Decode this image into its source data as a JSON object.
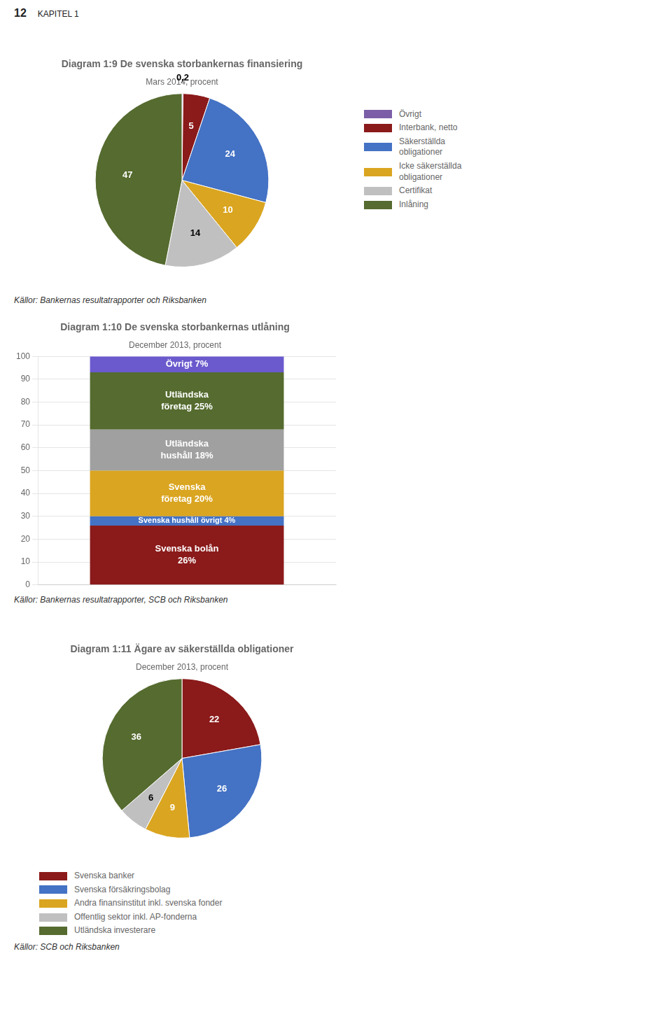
{
  "title": "12",
  "subtitle": "KAPITEL 1",
  "chart_data": [
    {
      "type": "pie",
      "title": "Diagram 1:9 De svenska storbankernas finansiering",
      "subtitle": "Mars 2014, procent",
      "annotations": [
        "Källor: Bankernas resultatrapporter och Riksbanken"
      ],
      "categories": [
        "Övrigt",
        "Interbank, netto",
        "Säkerställda\nobligationer",
        "Icke säkerställda\nobligationer",
        "Certifikat",
        "Inlåning"
      ],
      "values": [
        0.2,
        5,
        24,
        10,
        14,
        47
      ],
      "value_labels": [
        "0,2",
        "5",
        "24",
        "10",
        "14",
        "47"
      ],
      "colors": [
        "#7B5EA7",
        "#8B1A1A",
        "#4472C4",
        "#DAA520",
        "#C0C0C0",
        "#556B2F"
      ],
      "data_labels": true,
      "legend": "right"
    },
    {
      "type": "bar",
      "stacked": true,
      "title": "Diagram 1:10 De svenska storbankernas utlåning",
      "subtitle": "December 2013, procent",
      "annotations": [
        "Källor: Bankernas resultatrapporter, SCB och Riksbanken"
      ],
      "categories": [
        null
      ],
      "series": [
        {
          "color": "#8B1A1A",
          "values": [
            26
          ],
          "value_labels": [
            "Svenska bolån\n26%"
          ]
        },
        {
          "color": "#4472C4",
          "values": [
            4
          ],
          "value_labels": [
            "Svenska hushåll övrigt 4%"
          ]
        },
        {
          "color": "#DAA520",
          "values": [
            20
          ],
          "value_labels": [
            "Svenska\nföretag 20%"
          ]
        },
        {
          "color": "#A0A0A0",
          "values": [
            18
          ],
          "value_labels": [
            "Utländska\nhushåll 18%"
          ]
        },
        {
          "color": "#556B2F",
          "values": [
            25
          ],
          "value_labels": [
            "Utländska\nföretag 25%"
          ]
        },
        {
          "color": "#6A5ACD",
          "values": [
            7
          ],
          "value_labels": [
            "Övrigt 7%"
          ]
        }
      ],
      "data_labels": true,
      "ylim": [
        0,
        100
      ],
      "yticks": [
        0,
        10,
        20,
        30,
        40,
        50,
        60,
        70,
        80,
        90,
        100
      ],
      "grid": true,
      "tick_labels": "y"
    },
    {
      "type": "pie",
      "title": "Diagram 1:11 Ägare av säkerställda obligationer",
      "subtitle": "December 2013, procent",
      "annotations": [
        "Källor: SCB och Riksbanken"
      ],
      "categories": [
        "Svenska banker",
        "Svenska försäkringsbolag",
        "Andra finansinstitut inkl. svenska fonder",
        "Offentlig sektor inkl. AP-fonderna",
        "Utländska investerare"
      ],
      "values": [
        22,
        26,
        9,
        6,
        36
      ],
      "colors": [
        "#8B1A1A",
        "#4472C4",
        "#DAA520",
        "#C0C0C0",
        "#556B2F"
      ],
      "data_labels": true,
      "legend": "bottom"
    }
  ]
}
